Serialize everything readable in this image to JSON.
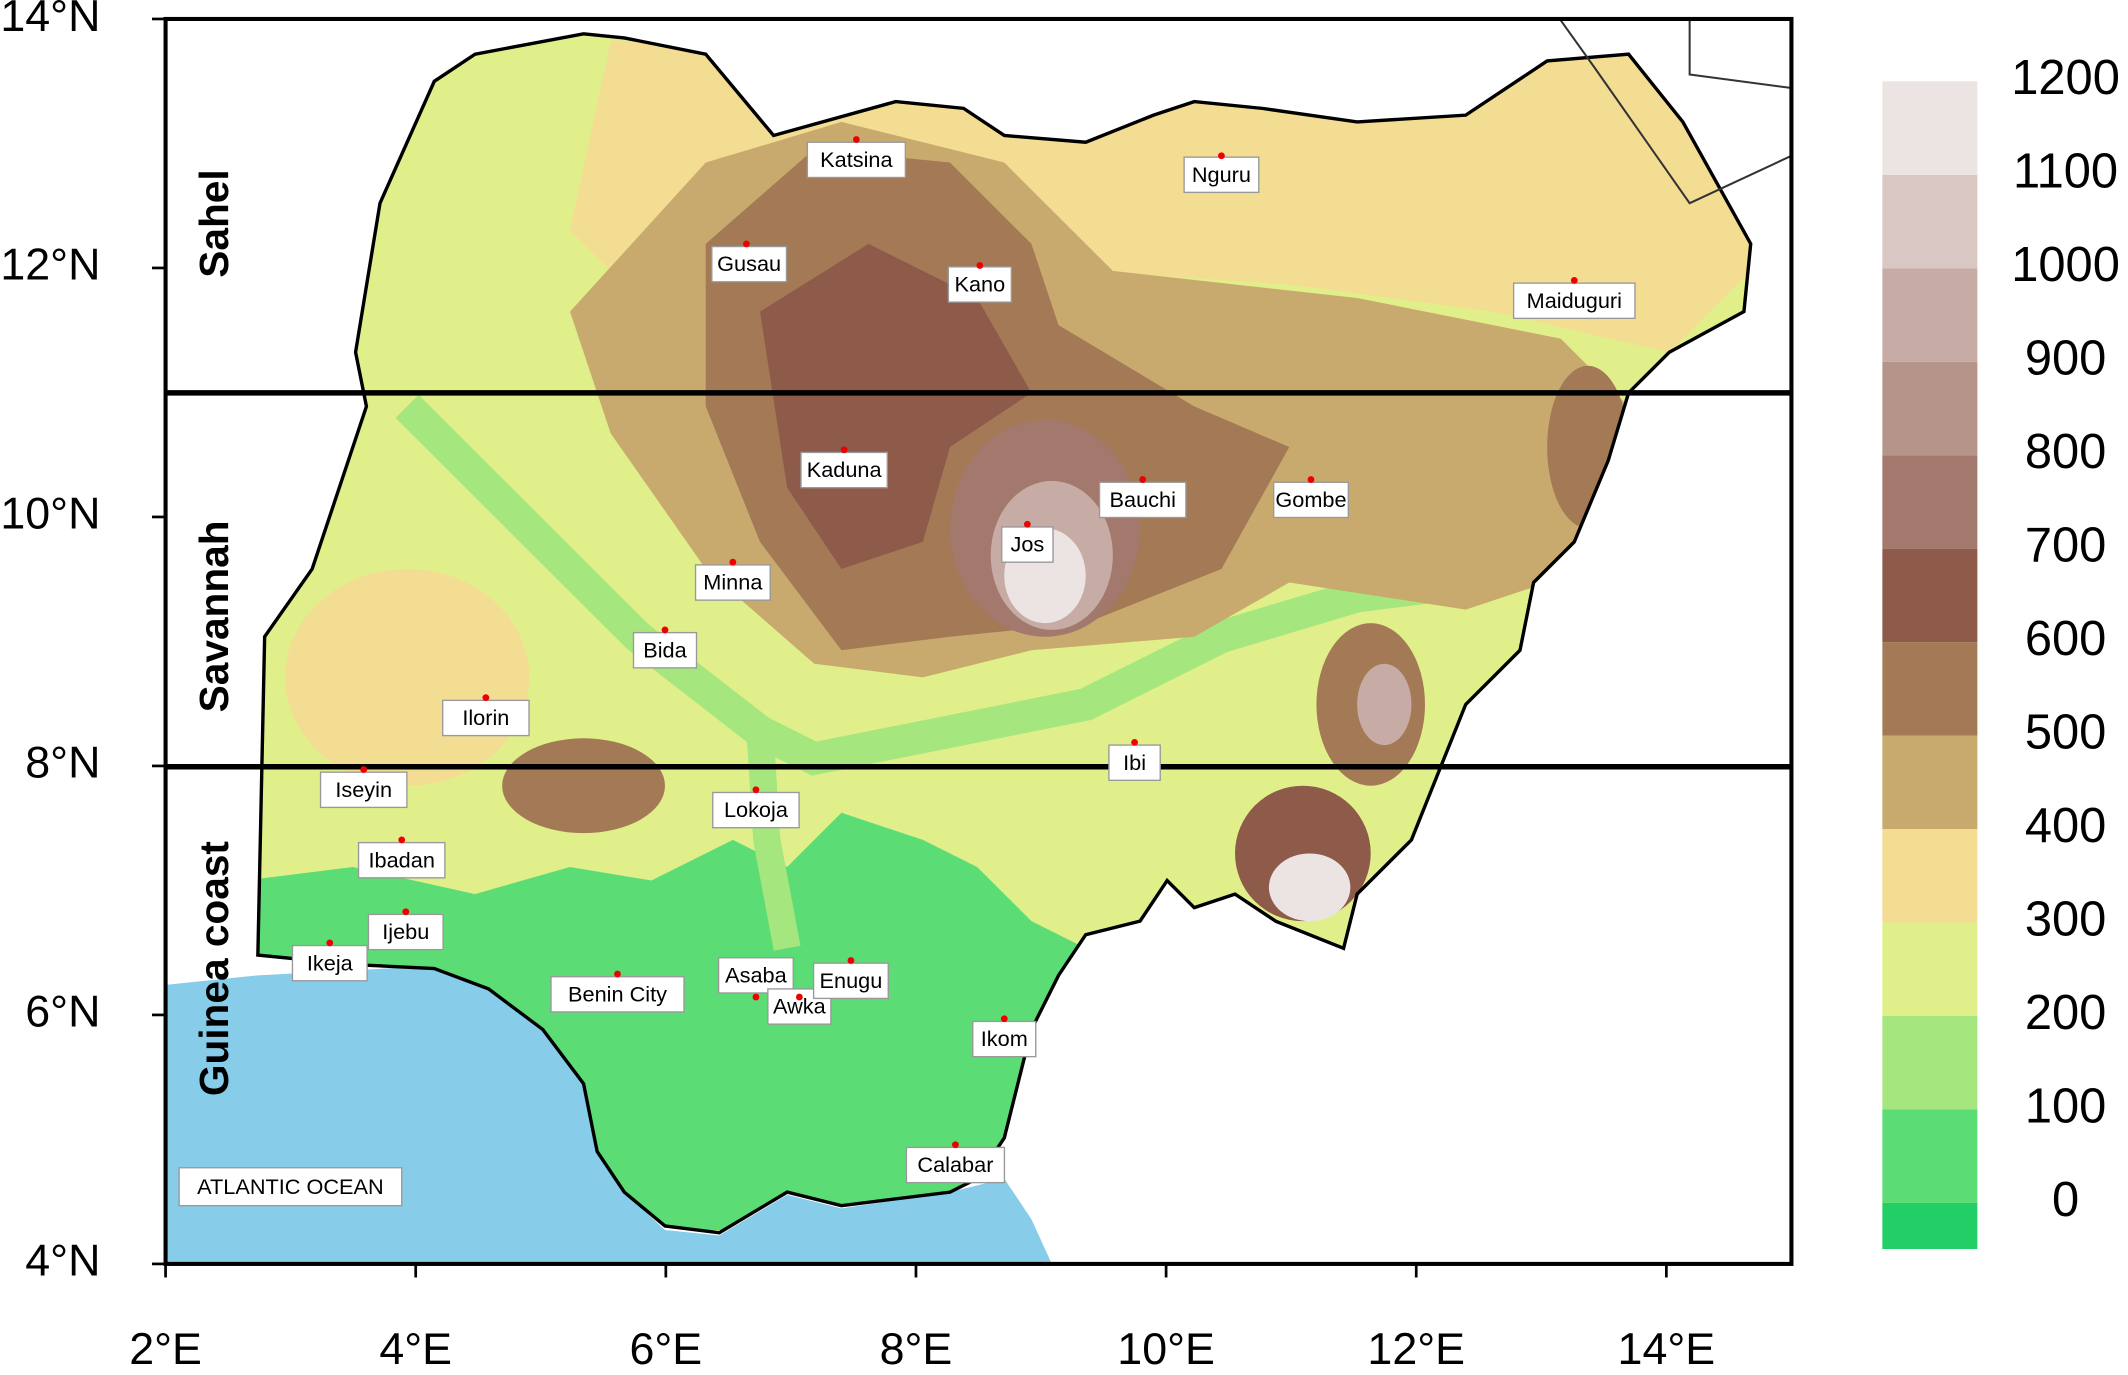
{
  "map": {
    "xlim": [
      2,
      15
    ],
    "ylim": [
      4,
      14
    ],
    "xticks": [
      {
        "value": 2,
        "label": "2°E"
      },
      {
        "value": 4,
        "label": "4°E"
      },
      {
        "value": 6,
        "label": "6°E"
      },
      {
        "value": 8,
        "label": "8°E"
      },
      {
        "value": 10,
        "label": "10°E"
      },
      {
        "value": 12,
        "label": "12°E"
      },
      {
        "value": 14,
        "label": "14°E"
      }
    ],
    "yticks": [
      {
        "value": 4,
        "label": "4°N"
      },
      {
        "value": 6,
        "label": "6°N"
      },
      {
        "value": 8,
        "label": "8°N"
      },
      {
        "value": 10,
        "label": "10°N"
      },
      {
        "value": 12,
        "label": "12°N"
      },
      {
        "value": 14,
        "label": "14°N"
      }
    ],
    "zones": [
      "Sahel",
      "Savannah",
      "Guinea coast"
    ],
    "ocean_label": "ATLANTIC OCEAN",
    "cities": [
      "Katsina",
      "Gusau",
      "Kano",
      "Nguru",
      "Maiduguri",
      "Kaduna",
      "Bauchi",
      "Gombe",
      "Jos",
      "Minna",
      "Bida",
      "Ilorin",
      "Ibi",
      "Iseyin",
      "Lokoja",
      "Ibadan",
      "Ijebu",
      "Ikeja",
      "Benin City",
      "Asaba",
      "Awka",
      "Enugu",
      "Ikom",
      "Calabar"
    ],
    "colorbar": {
      "ticks": [
        0,
        100,
        200,
        300,
        400,
        500,
        600,
        700,
        800,
        900,
        1000,
        1100,
        1200
      ],
      "colors": [
        "#22cf66",
        "#5cdc74",
        "#a5e67f",
        "#e0ef8a",
        "#f3dd93",
        "#c9aa6e",
        "#a37a55",
        "#8e5a4a",
        "#a3786d",
        "#b59489",
        "#c7aca6",
        "#d9c7c4",
        "#ece4e2"
      ]
    }
  }
}
